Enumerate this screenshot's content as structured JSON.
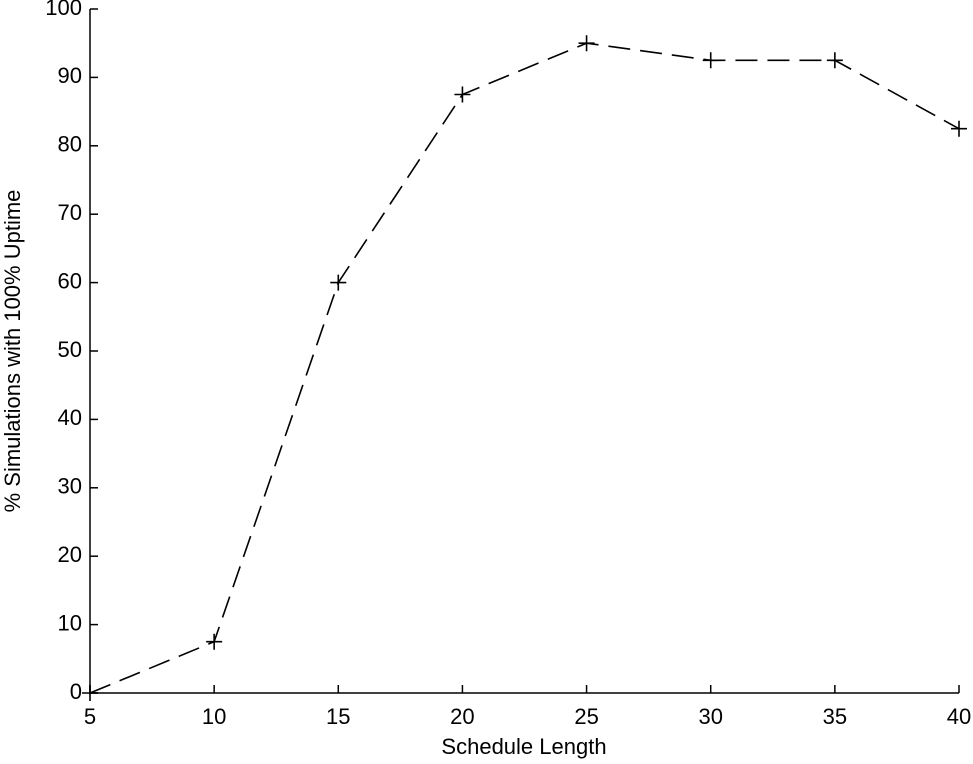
{
  "chart_data": {
    "type": "line",
    "x_label": "Schedule Length",
    "y_label": "% Simulations with 100% Uptime",
    "x": [
      5,
      10,
      15,
      20,
      25,
      30,
      35,
      40
    ],
    "series": [
      {
        "color": "#000000",
        "values": [
          0,
          7.5,
          60,
          87.5,
          95,
          92.5,
          92.5,
          82.5
        ]
      }
    ],
    "xlim": [
      5,
      40
    ],
    "xticks": [
      5,
      10,
      15,
      20,
      25,
      30,
      35,
      40
    ],
    "ylim": [
      0,
      100
    ],
    "yticks": [
      0,
      10,
      20,
      30,
      40,
      50,
      60,
      70,
      80,
      90,
      100
    ],
    "grid": false
  }
}
